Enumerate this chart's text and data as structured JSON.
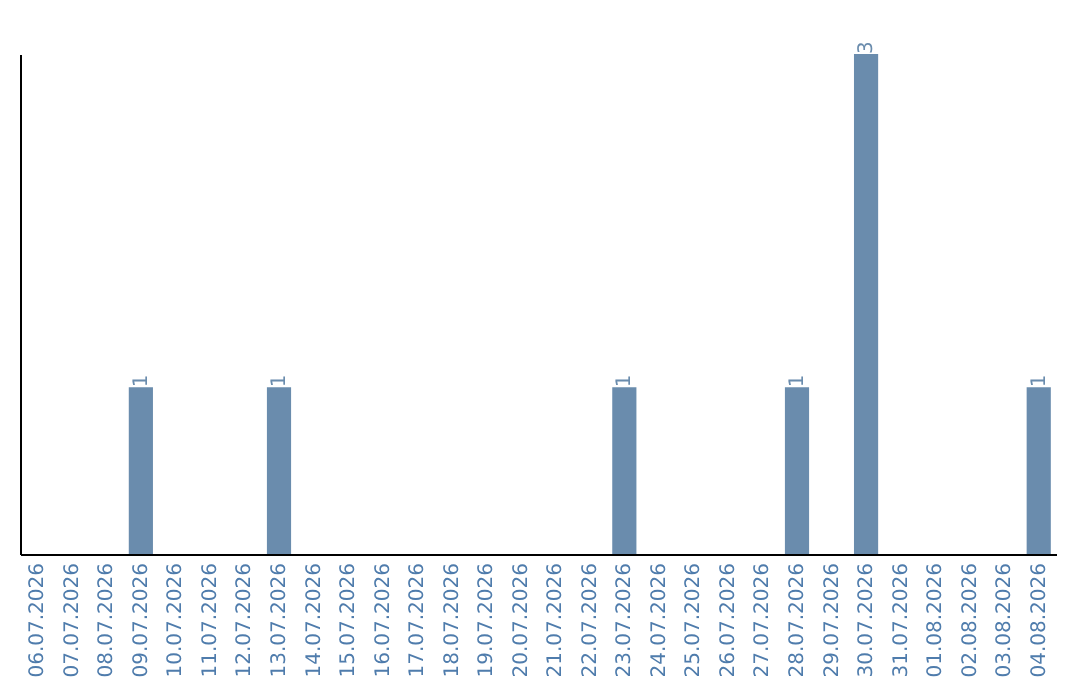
{
  "chart_data": {
    "type": "bar",
    "categories": [
      "06.07.2026",
      "07.07.2026",
      "08.07.2026",
      "09.07.2026",
      "10.07.2026",
      "11.07.2026",
      "12.07.2026",
      "13.07.2026",
      "14.07.2026",
      "15.07.2026",
      "16.07.2026",
      "17.07.2026",
      "18.07.2026",
      "19.07.2026",
      "20.07.2026",
      "21.07.2026",
      "22.07.2026",
      "23.07.2026",
      "24.07.2026",
      "25.07.2026",
      "26.07.2026",
      "27.07.2026",
      "28.07.2026",
      "29.07.2026",
      "30.07.2026",
      "31.07.2026",
      "01.08.2026",
      "02.08.2026",
      "03.08.2026",
      "04.08.2026"
    ],
    "values": [
      0,
      0,
      0,
      1,
      0,
      0,
      0,
      1,
      0,
      0,
      0,
      0,
      0,
      0,
      0,
      0,
      0,
      1,
      0,
      0,
      0,
      0,
      1,
      0,
      3,
      0,
      0,
      0,
      0,
      1
    ],
    "value_labels": [
      null,
      null,
      null,
      "1",
      null,
      null,
      null,
      "1",
      null,
      null,
      null,
      null,
      null,
      null,
      null,
      null,
      null,
      "1",
      null,
      null,
      null,
      null,
      "1",
      null,
      "3",
      null,
      null,
      null,
      null,
      "1"
    ],
    "color": "#6a8cad",
    "grid": false
  }
}
